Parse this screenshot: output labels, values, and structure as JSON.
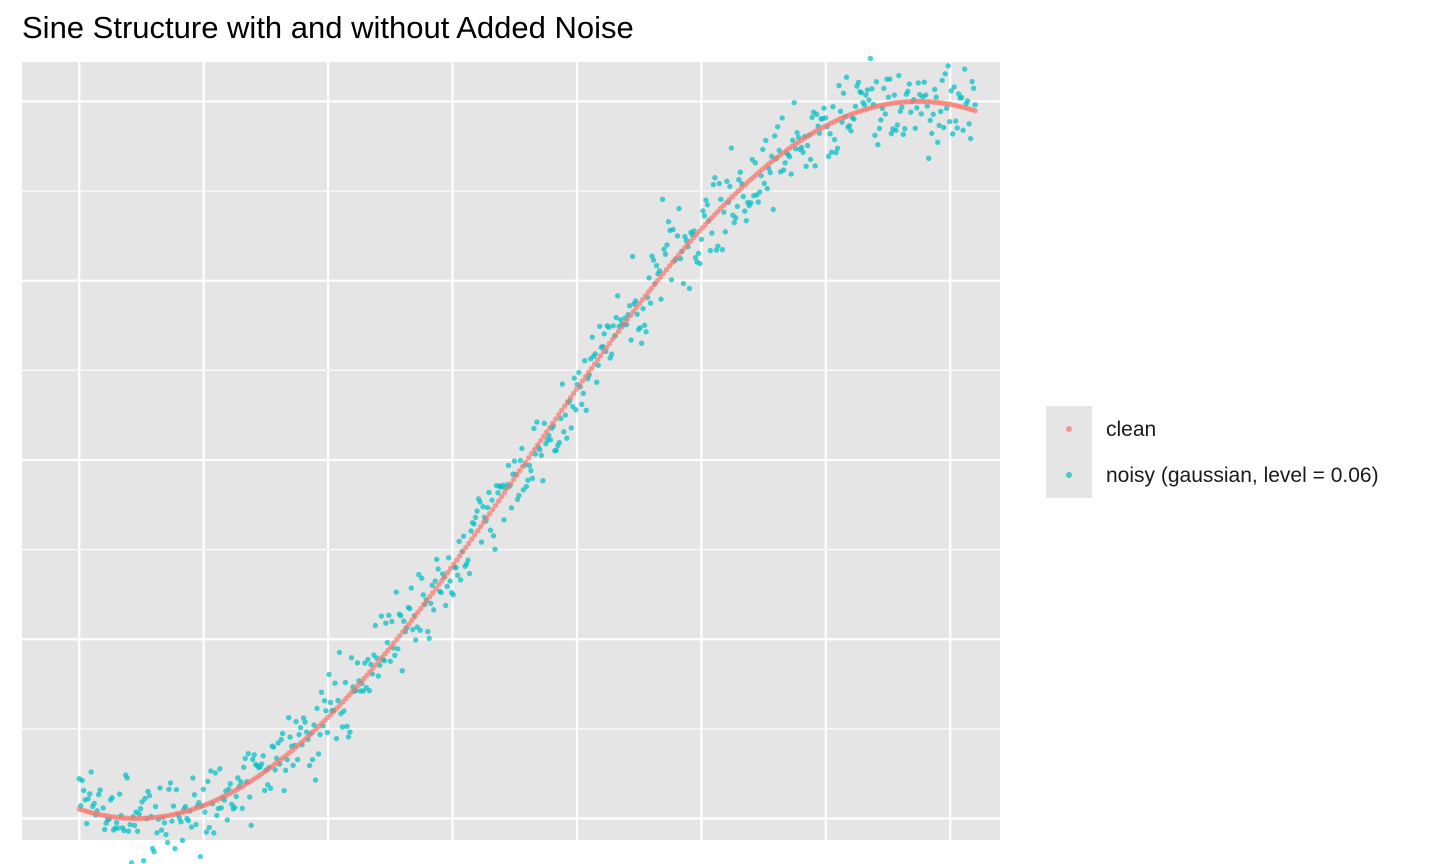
{
  "chart_data": {
    "type": "scatter",
    "title": "Sine Structure with and without Added Noise",
    "xlabel": "",
    "ylabel": "",
    "xlim": [
      -0.23,
      3.7
    ],
    "ylim": [
      -1.06,
      1.11
    ],
    "axis_tick_labels_shown": false,
    "grid": true,
    "panel_background": "#e5e5e5",
    "legend_position": "right",
    "series": [
      {
        "name": "clean",
        "color": "#f8766d",
        "description_shape": "x from 0 to 3.6, y = sin(x - 1.8)",
        "x_range": [
          0,
          3.6
        ],
        "n_points": 300
      },
      {
        "name": "noisy (gaussian, level = 0.06)",
        "color": "#00bfc4",
        "noise_sd": 0.06,
        "x_range": [
          0,
          3.6
        ],
        "n_points": 600
      }
    ]
  }
}
